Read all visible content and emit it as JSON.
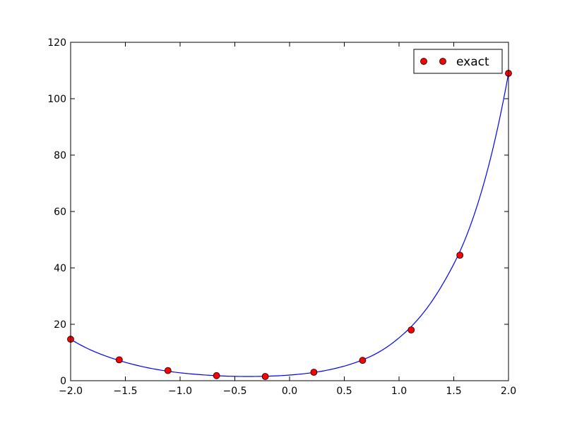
{
  "chart_data": {
    "type": "scatter",
    "title": "",
    "xlabel": "",
    "ylabel": "",
    "xlim": [
      -2.0,
      2.0
    ],
    "ylim": [
      0,
      120
    ],
    "grid": false,
    "legend_position": "top-right",
    "x_ticks": [
      -2.0,
      -1.5,
      -1.0,
      -0.5,
      0.0,
      0.5,
      1.0,
      1.5,
      2.0
    ],
    "x_tick_labels": [
      "−2.0",
      "−1.5",
      "−1.0",
      "−0.5",
      "0.0",
      "0.5",
      "1.0",
      "1.5",
      "2.0"
    ],
    "y_ticks": [
      0,
      20,
      40,
      60,
      80,
      100,
      120
    ],
    "y_tick_labels": [
      "0",
      "20",
      "40",
      "60",
      "80",
      "100",
      "120"
    ],
    "series": [
      {
        "name": "exact",
        "style": "markers",
        "color": "#ff0000",
        "edge_color": "#000000",
        "x": [
          -2.0,
          -1.556,
          -1.111,
          -0.667,
          -0.222,
          0.222,
          0.667,
          1.111,
          1.556,
          2.0
        ],
        "y": [
          14.7,
          7.4,
          3.6,
          1.8,
          1.5,
          3.0,
          7.2,
          18.0,
          44.5,
          109.0
        ]
      },
      {
        "style": "line",
        "color": "#0000ff",
        "x": [
          -2.0,
          -1.8,
          -1.6,
          -1.4,
          -1.2,
          -1.0,
          -0.8,
          -0.6,
          -0.4,
          -0.2,
          0.0,
          0.2,
          0.4,
          0.6,
          0.8,
          1.0,
          1.2,
          1.4,
          1.6,
          1.8,
          2.0
        ],
        "y": [
          14.7,
          10.6,
          7.7,
          5.5,
          3.9,
          2.8,
          2.1,
          1.65,
          1.5,
          1.6,
          2.0,
          2.8,
          4.2,
          6.4,
          9.8,
          15.2,
          23.0,
          34.3,
          49.8,
          73.5,
          109.0
        ]
      }
    ]
  }
}
